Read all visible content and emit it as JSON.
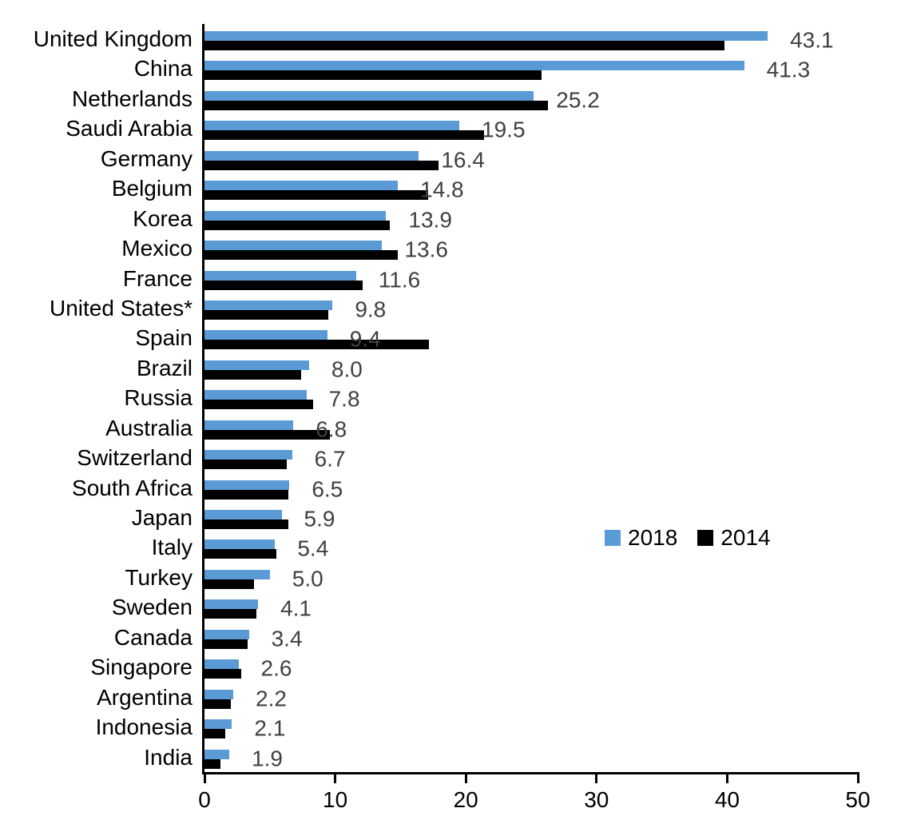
{
  "chart_data": {
    "type": "bar",
    "orientation": "horizontal",
    "title": "",
    "xlabel": "",
    "ylabel": "",
    "xlim": [
      0,
      50
    ],
    "x_ticks": [
      0,
      10,
      20,
      30,
      40,
      50
    ],
    "grid": false,
    "legend_position": "middle-right",
    "categories": [
      "United Kingdom",
      "China",
      "Netherlands",
      "Saudi Arabia",
      "Germany",
      "Belgium",
      "Korea",
      "Mexico",
      "France",
      "United States*",
      "Spain",
      "Brazil",
      "Russia",
      "Australia",
      "Switzerland",
      "South Africa",
      "Japan",
      "Italy",
      "Turkey",
      "Sweden",
      "Canada",
      "Singapore",
      "Argentina",
      "Indonesia",
      "India"
    ],
    "series": [
      {
        "name": "2018",
        "color": "#5B9BD5",
        "values": [
          43.1,
          41.3,
          25.2,
          19.5,
          16.4,
          14.8,
          13.9,
          13.6,
          11.6,
          9.8,
          9.4,
          8.0,
          7.8,
          6.8,
          6.7,
          6.5,
          5.9,
          5.4,
          5.0,
          4.1,
          3.4,
          2.6,
          2.2,
          2.1,
          1.9
        ],
        "data_labels_visible": true
      },
      {
        "name": "2014",
        "color": "#000000",
        "values": [
          39.8,
          25.8,
          26.3,
          21.4,
          17.9,
          17.1,
          14.2,
          14.8,
          12.1,
          9.5,
          17.2,
          7.4,
          8.3,
          9.6,
          6.3,
          6.4,
          6.4,
          5.5,
          3.8,
          4.0,
          3.3,
          2.8,
          2.0,
          1.6,
          1.2
        ],
        "data_labels_visible": false
      }
    ],
    "data_labels": [
      "43.1",
      "41.3",
      "25.2",
      "19.5",
      "16.4",
      "14.8",
      "13.9",
      "13.6",
      "11.6",
      "9.8",
      "9.4",
      "8.0",
      "7.8",
      "6.8",
      "6.7",
      "6.5",
      "5.9",
      "5.4",
      "5.0",
      "4.1",
      "3.4",
      "2.6",
      "2.2",
      "2.1",
      "1.9"
    ]
  },
  "legend": {
    "entries": [
      {
        "label": "2018",
        "color": "#5B9BD5"
      },
      {
        "label": "2014",
        "color": "#000000"
      }
    ]
  },
  "colors": {
    "bar_2018": "#5B9BD5",
    "bar_2014": "#000000",
    "value_label": "#404040",
    "axis": "#000000",
    "background": "#ffffff"
  }
}
